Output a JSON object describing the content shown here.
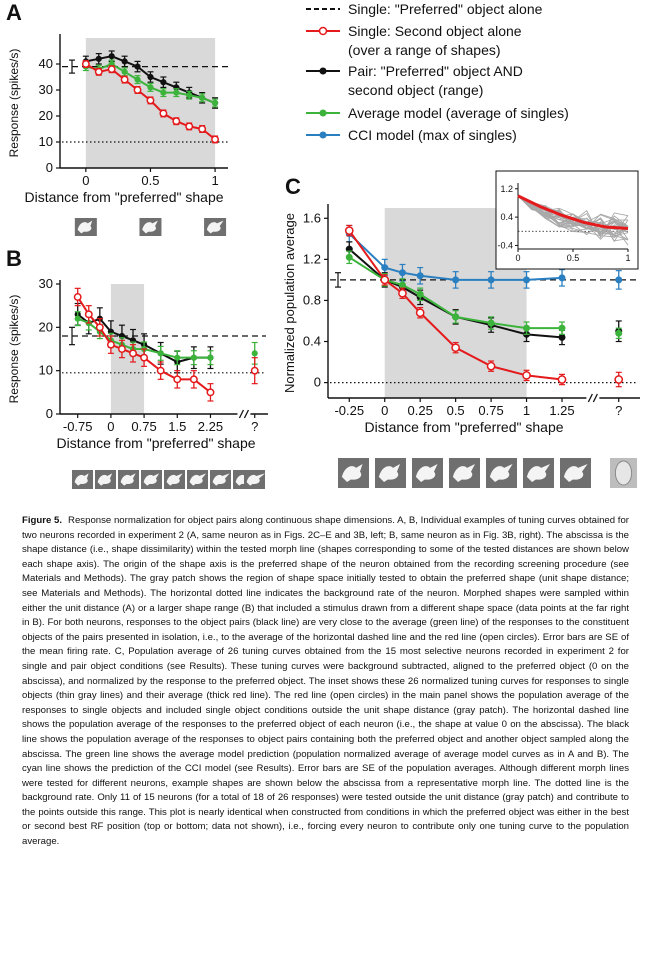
{
  "legend": [
    {
      "text": "Single: \"Preferred\" object alone",
      "style": "dashed",
      "color": "#111111"
    },
    {
      "text": "Single: Second object alone\n(over a range of shapes)",
      "style": "line-open-circle",
      "color": "#e41a1c"
    },
    {
      "text": "Pair: \"Preferred\" object AND\nsecond object (range)",
      "style": "line-dot",
      "color": "#111111"
    },
    {
      "text": "Average model (average of singles)",
      "style": "line-dot",
      "color": "#3cb43c"
    },
    {
      "text": "CCI model (max of singles)",
      "style": "line-dot",
      "color": "#2a7fc1"
    }
  ],
  "colors": {
    "pair": "#111111",
    "single": "#e41a1c",
    "average": "#3cb43c",
    "cci": "#2a7fc1",
    "patch": "#d9d9d9"
  },
  "chart_data": [
    {
      "panel": "A",
      "type": "line",
      "ylabel": "Response (spikes/s)",
      "xlabel": "Distance from \"preferred\" shape",
      "xlim": [
        -0.2,
        1.1
      ],
      "ylim": [
        0,
        50
      ],
      "xticks": [
        0,
        0.5,
        1
      ],
      "xtick_labels": [
        "0",
        "0.5",
        "1"
      ],
      "yticks": [
        0,
        10,
        20,
        30,
        40
      ],
      "patch": [
        0,
        1
      ],
      "preferred_level": 39,
      "preferred_err": 2.5,
      "background_level": 10,
      "series": [
        {
          "key": "pair",
          "x": [
            0,
            0.1,
            0.2,
            0.3,
            0.4,
            0.5,
            0.6,
            0.7,
            0.8,
            0.9,
            1.0
          ],
          "y": [
            41,
            42,
            43,
            41,
            39,
            35,
            33,
            31,
            29,
            27,
            25
          ],
          "err": 2
        },
        {
          "key": "average",
          "x": [
            0,
            0.1,
            0.2,
            0.3,
            0.4,
            0.5,
            0.6,
            0.7,
            0.8,
            0.9,
            1.0
          ],
          "y": [
            39,
            38,
            40,
            37,
            34,
            31,
            29,
            29,
            28,
            27,
            25
          ],
          "err": 1.5
        },
        {
          "key": "single",
          "x": [
            0,
            0.1,
            0.2,
            0.3,
            0.4,
            0.5,
            0.6,
            0.7,
            0.8,
            0.9,
            1.0
          ],
          "y": [
            40,
            37,
            38,
            34,
            30,
            26,
            21,
            18,
            16,
            15,
            11
          ],
          "err": 1.3
        }
      ]
    },
    {
      "panel": "B",
      "type": "line",
      "ylabel": "Response (spikes/s)",
      "xlabel": "Distance from \"preferred\" shape",
      "xlim": [
        -1.15,
        3.55
      ],
      "ylim": [
        0,
        30
      ],
      "xticks": [
        -0.75,
        0,
        0.75,
        1.5,
        2.25,
        3.25
      ],
      "xtick_labels": [
        "-0.75",
        "0",
        "0.75",
        "1.5",
        "2.25",
        "?"
      ],
      "yticks": [
        0,
        10,
        20,
        30
      ],
      "patch": [
        0,
        0.75
      ],
      "preferred_level": 18,
      "preferred_err": 2,
      "background_level": 9.5,
      "series": [
        {
          "key": "pair",
          "x": [
            -0.75,
            -0.5,
            -0.25,
            0,
            0.25,
            0.5,
            0.75,
            1.125,
            1.5,
            1.875,
            2.25
          ],
          "y": [
            23,
            21,
            22,
            19,
            18,
            17,
            16,
            14,
            12,
            13,
            13
          ],
          "err": 2.5
        },
        {
          "key": "average",
          "x": [
            -0.75,
            -0.5,
            -0.25,
            0,
            0.25,
            0.5,
            0.75,
            1.125,
            1.5,
            1.875,
            2.25
          ],
          "y": [
            22,
            21,
            19,
            17,
            16,
            15,
            15,
            14,
            13,
            13,
            13
          ],
          "err": 1.6
        },
        {
          "key": "single",
          "x": [
            -0.75,
            -0.5,
            -0.25,
            0,
            0.25,
            0.5,
            0.75,
            1.125,
            1.5,
            1.875,
            2.25
          ],
          "y": [
            27,
            23,
            20,
            16,
            15,
            14,
            13,
            10,
            8,
            8,
            5
          ],
          "err": 2
        },
        {
          "key": "single",
          "x": [
            3.25
          ],
          "y": [
            10
          ],
          "err": 3
        },
        {
          "key": "average",
          "x": [
            3.25
          ],
          "y": [
            14
          ],
          "err": 2.5
        }
      ]
    },
    {
      "panel": "C",
      "type": "line",
      "ylabel": "Normalized population average",
      "xlabel": "Distance from \"preferred\" shape",
      "xlim": [
        -0.4,
        1.8
      ],
      "ylim": [
        -0.15,
        1.7
      ],
      "xticks": [
        -0.25,
        0,
        0.25,
        0.5,
        0.75,
        1,
        1.25,
        1.65
      ],
      "xtick_labels": [
        "-0.25",
        "0",
        "0.25",
        "0.5",
        "0.75",
        "1",
        "1.25",
        "?"
      ],
      "yticks": [
        0,
        0.4,
        0.8,
        1.2,
        1.6
      ],
      "ytick_labels": [
        "0",
        "0.4",
        "0.8",
        "1.2",
        "1.6"
      ],
      "patch": [
        0,
        1
      ],
      "preferred_level": 1.0,
      "preferred_err": 0.07,
      "background_level": 0,
      "series": [
        {
          "key": "cci",
          "x": [
            -0.25,
            0,
            0.125,
            0.25,
            0.5,
            0.75,
            1,
            1.25
          ],
          "y": [
            1.45,
            1.12,
            1.07,
            1.04,
            1.0,
            1.0,
            1.0,
            1.02
          ],
          "err": 0.08
        },
        {
          "key": "pair",
          "x": [
            -0.25,
            0,
            0.125,
            0.25,
            0.5,
            0.75,
            1,
            1.25
          ],
          "y": [
            1.3,
            1.0,
            0.93,
            0.83,
            0.64,
            0.56,
            0.47,
            0.44
          ],
          "err": 0.07
        },
        {
          "key": "average",
          "x": [
            -0.25,
            0,
            0.125,
            0.25,
            0.5,
            0.75,
            1,
            1.25
          ],
          "y": [
            1.22,
            1.0,
            0.95,
            0.86,
            0.64,
            0.58,
            0.53,
            0.53
          ],
          "err": 0.06
        },
        {
          "key": "single",
          "x": [
            -0.25,
            0,
            0.125,
            0.25,
            0.5,
            0.75,
            1,
            1.25
          ],
          "y": [
            1.48,
            1.0,
            0.87,
            0.68,
            0.34,
            0.16,
            0.07,
            0.03
          ],
          "err": 0.05
        },
        {
          "key": "cci",
          "x": [
            1.65
          ],
          "y": [
            1.0
          ],
          "err": 0.09
        },
        {
          "key": "pair",
          "x": [
            1.65
          ],
          "y": [
            0.5
          ],
          "err": 0.1
        },
        {
          "key": "average",
          "x": [
            1.65
          ],
          "y": [
            0.48
          ],
          "err": 0.05
        },
        {
          "key": "single",
          "x": [
            1.65
          ],
          "y": [
            0.03
          ],
          "err": 0.07
        }
      ],
      "inset": {
        "xlim": [
          0,
          1
        ],
        "ylim": [
          -0.5,
          1.25
        ],
        "xticks": [
          0,
          0.5,
          1
        ],
        "xtick_labels": [
          "0",
          "0.5",
          "1"
        ],
        "yticks": [
          1.2,
          0.4,
          -0.4
        ],
        "ytick_labels": [
          "1.2",
          "0.4",
          "-0.4"
        ],
        "mean": {
          "x": [
            0,
            0.2,
            0.4,
            0.6,
            0.8,
            1.0
          ],
          "y": [
            1.0,
            0.7,
            0.45,
            0.25,
            0.12,
            0.08
          ]
        }
      }
    }
  ],
  "caption": {
    "label": "Figure 5.",
    "text": "Response normalization for object pairs along continuous shape dimensions. A, B, Individual examples of tuning curves obtained for two neurons recorded in experiment 2 (A, same neuron as in Figs. 2C–E and 3B, left; B, same neuron as in Fig. 3B, right). The abscissa is the shape distance (i.e., shape dissimilarity) within the tested morph line (shapes corresponding to some of the tested distances are shown below each shape axis). The origin of the shape axis is the preferred shape of the neuron obtained from the recording screening procedure (see Materials and Methods). The gray patch shows the region of shape space initially tested to obtain the preferred shape (unit shape distance; see Materials and Methods). The horizontal dotted line indicates the background rate of the neuron. Morphed shapes were sampled within either the unit distance (A) or a larger shape range (B) that included a stimulus drawn from a different shape space (data points at the far right in B). For both neurons, responses to the object pairs (black line) are very close to the average (green line) of the responses to the constituent objects of the pairs presented in isolation, i.e., to the average of the horizontal dashed line and the red line (open circles). Error bars are SE of the mean firing rate. C, Population average of 26 tuning curves obtained from the 15 most selective neurons recorded in experiment 2 for single and pair object conditions (see Results). These tuning curves were background subtracted, aligned to the preferred object (0 on the abscissa), and normalized by the response to the preferred object. The inset shows these 26 normalized tuning curves for responses to single objects (thin gray lines) and their average (thick red line). The red line (open circles) in the main panel shows the population average of the responses to single objects and included single object conditions outside the unit shape distance (gray patch). The horizontal dashed line shows the population average of the responses to the preferred object of each neuron (i.e., the shape at value 0 on the abscissa). The black line shows the population average of the responses to object pairs containing both the preferred object and another object sampled along the abscissa. The green line shows the average model prediction (population normalized average of average model curves as in A and B). The cyan line shows the prediction of the CCI model (see Results). Error bars are SE of the population averages. Although different morph lines were tested for different neurons, example shapes are shown below the abscissa from a representative morph line. The dotted line is the background rate. Only 11 of 15 neurons (for a total of 18 of 26 responses) were tested outside the unit distance (gray patch) and contribute to the points outside this range. This plot is nearly identical when constructed from conditions in which the preferred object was either in the best or second best RF position (top or bottom; data not shown), i.e., forcing every neuron to contribute only one tuning curve to the population average."
  }
}
